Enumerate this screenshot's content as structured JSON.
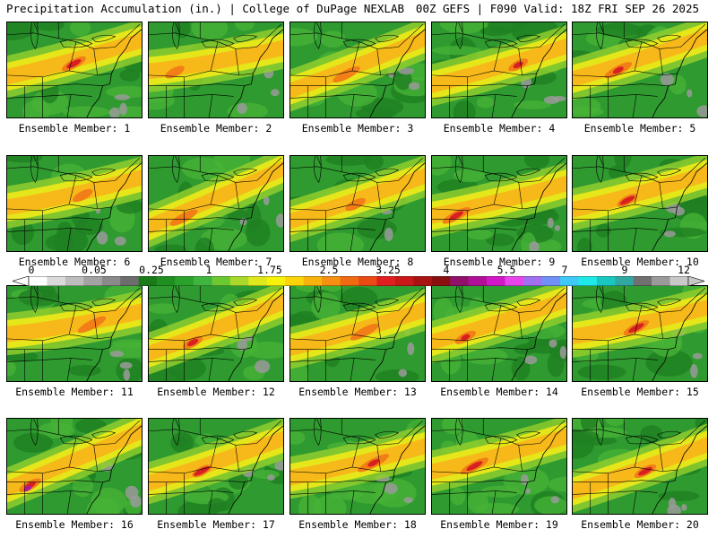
{
  "header": {
    "left": "Precipitation Accumulation (in.) | College of DuPage NEXLAB",
    "right": "00Z GEFS | F090 Valid: 18Z FRI SEP 26 2025"
  },
  "members": [
    {
      "label": "Ensemble Member: 1"
    },
    {
      "label": "Ensemble Member: 2"
    },
    {
      "label": "Ensemble Member: 3"
    },
    {
      "label": "Ensemble Member: 4"
    },
    {
      "label": "Ensemble Member: 5"
    },
    {
      "label": "Ensemble Member: 6"
    },
    {
      "label": "Ensemble Member: 7"
    },
    {
      "label": "Ensemble Member: 8"
    },
    {
      "label": "Ensemble Member: 9"
    },
    {
      "label": "Ensemble Member: 10"
    },
    {
      "label": "Ensemble Member: 11"
    },
    {
      "label": "Ensemble Member: 12"
    },
    {
      "label": "Ensemble Member: 13"
    },
    {
      "label": "Ensemble Member: 14"
    },
    {
      "label": "Ensemble Member: 15"
    },
    {
      "label": "Ensemble Member: 16"
    },
    {
      "label": "Ensemble Member: 17"
    },
    {
      "label": "Ensemble Member: 18"
    },
    {
      "label": "Ensemble Member: 19"
    },
    {
      "label": "Ensemble Member: 20"
    }
  ],
  "colorbar": {
    "ticks": [
      "0",
      "0.05",
      "0.25",
      "1",
      "1.75",
      "2.5",
      "3.25",
      "4",
      "5.5",
      "7",
      "9",
      "12"
    ],
    "colors": [
      "#ffffff",
      "#d9d9d9",
      "#bdbdbd",
      "#a3a3a3",
      "#8a8a8a",
      "#6d6d6d",
      "#1a7a1a",
      "#1f8f1f",
      "#2aa12a",
      "#3fb43f",
      "#6cc830",
      "#a8d82a",
      "#dfe81c",
      "#f6f20a",
      "#fbd40a",
      "#f8b20c",
      "#f59010",
      "#f06a12",
      "#ea4a14",
      "#e02020",
      "#c81818",
      "#a81414",
      "#8a1010",
      "#90106a",
      "#b01098",
      "#d018c8",
      "#e844ec",
      "#a070f0",
      "#7090f8",
      "#40c8f8",
      "#20e8e8",
      "#18c8c0",
      "#30a8a0",
      "#707070",
      "#9a9a9a",
      "#c8c8c8"
    ]
  }
}
